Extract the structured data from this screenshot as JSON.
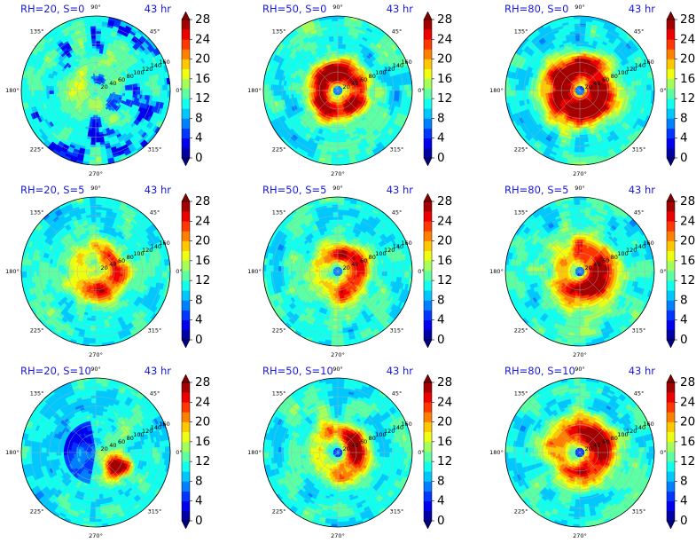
{
  "chart_data": {
    "type": "polar-contourf-grid",
    "layout": {
      "rows": 3,
      "cols": 3
    },
    "angle_ticks": [
      "0°",
      "45°",
      "90°",
      "135°",
      "180°",
      "225°",
      "270°",
      "315°"
    ],
    "radial_ticks": [
      "20",
      "40",
      "60",
      "80",
      "100",
      "120",
      "140",
      "160"
    ],
    "colorbar": {
      "ticks": [
        "0",
        "4",
        "8",
        "12",
        "16",
        "20",
        "24",
        "28"
      ],
      "range": [
        0,
        28
      ],
      "extend": "both",
      "colormap": "jet",
      "levels": [
        0,
        2,
        4,
        6,
        8,
        10,
        12,
        14,
        16,
        18,
        20,
        22,
        24,
        26,
        28
      ]
    },
    "panels": [
      {
        "title": "RH=20, S=0",
        "time": "43 hr",
        "rh": 20,
        "shear": 0
      },
      {
        "title": "RH=50, S=0",
        "time": "43 hr",
        "rh": 50,
        "shear": 0
      },
      {
        "title": "RH=80, S=0",
        "time": "43 hr",
        "rh": 80,
        "shear": 0
      },
      {
        "title": "RH=20, S=5",
        "time": "43 hr",
        "rh": 20,
        "shear": 5
      },
      {
        "title": "RH=50, S=5",
        "time": "43 hr",
        "rh": 50,
        "shear": 5
      },
      {
        "title": "RH=80, S=5",
        "time": "43 hr",
        "rh": 80,
        "shear": 5
      },
      {
        "title": "RH=20, S=10",
        "time": "43 hr",
        "rh": 20,
        "shear": 10
      },
      {
        "title": "RH=50, S=10",
        "time": "43 hr",
        "rh": 50,
        "shear": 10
      },
      {
        "title": "RH=80, S=10",
        "time": "43 hr",
        "rh": 80,
        "shear": 10
      }
    ]
  }
}
